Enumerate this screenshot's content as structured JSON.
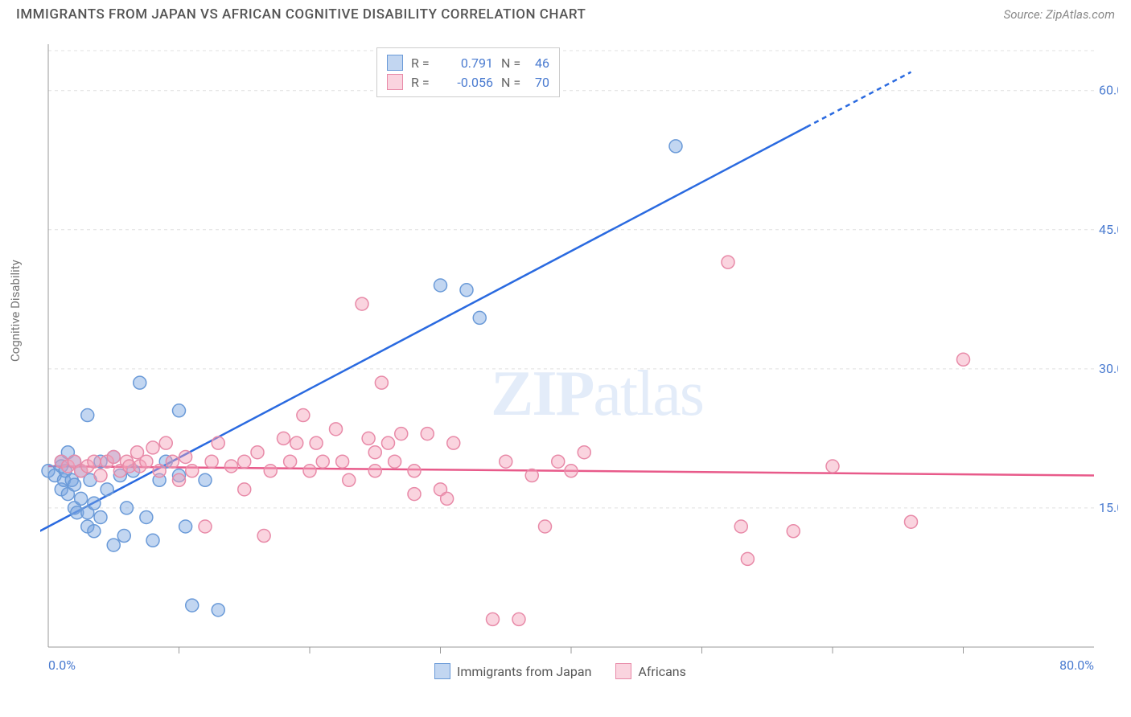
{
  "title": "IMMIGRANTS FROM JAPAN VS AFRICAN COGNITIVE DISABILITY CORRELATION CHART",
  "source_label": "Source: ZipAtlas.com",
  "ylabel": "Cognitive Disability",
  "watermark_a": "ZIP",
  "watermark_b": "atlas",
  "chart": {
    "type": "scatter",
    "xlim": [
      0,
      80
    ],
    "ylim": [
      0,
      65
    ],
    "x_tick_labels": {
      "0": "0.0%",
      "80": "80.0%"
    },
    "y_tick_labels": [
      "15.0%",
      "30.0%",
      "45.0%",
      "60.0%"
    ],
    "y_tick_values": [
      15,
      30,
      45,
      60
    ],
    "x_minor_ticks": [
      10,
      20,
      30,
      40,
      50,
      60,
      70
    ],
    "grid_color": "#e0e0e0",
    "axis_color": "#999",
    "tick_label_color": "#4a7bd0",
    "background_color": "#ffffff",
    "marker_radius": 8,
    "marker_stroke_width": 1.5,
    "line_width": 2.5,
    "series": [
      {
        "name": "Immigrants from Japan",
        "fill_color": "rgba(120,165,225,0.45)",
        "stroke_color": "#6a9ad8",
        "line_color": "#2a6ae0",
        "R": "0.791",
        "N": "46",
        "trend": {
          "x1": -2,
          "y1": 11.5,
          "x2": 66,
          "y2": 62,
          "dash_from_x": 58
        },
        "points": [
          [
            0,
            19
          ],
          [
            0.5,
            18.5
          ],
          [
            1,
            20
          ],
          [
            1,
            17
          ],
          [
            1,
            19.5
          ],
          [
            1.2,
            18
          ],
          [
            1.3,
            19
          ],
          [
            1.5,
            21
          ],
          [
            1.5,
            16.5
          ],
          [
            1.8,
            18
          ],
          [
            2,
            20
          ],
          [
            2,
            15
          ],
          [
            2,
            17.5
          ],
          [
            2.2,
            14.5
          ],
          [
            2.5,
            19
          ],
          [
            2.5,
            16
          ],
          [
            3,
            13
          ],
          [
            3,
            14.5
          ],
          [
            3,
            25
          ],
          [
            3.2,
            18
          ],
          [
            3.5,
            15.5
          ],
          [
            3.5,
            12.5
          ],
          [
            4,
            14
          ],
          [
            4,
            20
          ],
          [
            4.5,
            17
          ],
          [
            5,
            20.5
          ],
          [
            5,
            11
          ],
          [
            5.5,
            18.5
          ],
          [
            5.8,
            12
          ],
          [
            6,
            15
          ],
          [
            6.5,
            19
          ],
          [
            7,
            28.5
          ],
          [
            7.5,
            14
          ],
          [
            8,
            11.5
          ],
          [
            8.5,
            18
          ],
          [
            9,
            20
          ],
          [
            10,
            25.5
          ],
          [
            10,
            18.5
          ],
          [
            10.5,
            13
          ],
          [
            11,
            4.5
          ],
          [
            12,
            18
          ],
          [
            13,
            4
          ],
          [
            30,
            39
          ],
          [
            32,
            38.5
          ],
          [
            33,
            35.5
          ],
          [
            48,
            54
          ]
        ]
      },
      {
        "name": "Africans",
        "fill_color": "rgba(245,160,185,0.45)",
        "stroke_color": "#e88aa8",
        "line_color": "#e85a8a",
        "R": "-0.056",
        "N": "70",
        "trend": {
          "x1": 0,
          "y1": 19.5,
          "x2": 80,
          "y2": 18.5,
          "dash_from_x": 999
        },
        "points": [
          [
            1,
            20
          ],
          [
            1.5,
            19.5
          ],
          [
            2,
            20
          ],
          [
            2.5,
            19
          ],
          [
            3,
            19.5
          ],
          [
            3.5,
            20
          ],
          [
            4,
            18.5
          ],
          [
            4.5,
            20
          ],
          [
            5,
            20.5
          ],
          [
            5.5,
            19
          ],
          [
            6,
            20
          ],
          [
            6.2,
            19.5
          ],
          [
            6.8,
            21
          ],
          [
            7,
            19.5
          ],
          [
            7.5,
            20
          ],
          [
            8,
            21.5
          ],
          [
            8.5,
            19
          ],
          [
            9,
            22
          ],
          [
            9.5,
            20
          ],
          [
            10,
            18
          ],
          [
            10.5,
            20.5
          ],
          [
            11,
            19
          ],
          [
            12,
            13
          ],
          [
            12.5,
            20
          ],
          [
            13,
            22
          ],
          [
            14,
            19.5
          ],
          [
            15,
            20
          ],
          [
            15,
            17
          ],
          [
            16,
            21
          ],
          [
            16.5,
            12
          ],
          [
            17,
            19
          ],
          [
            18,
            22.5
          ],
          [
            18.5,
            20
          ],
          [
            19,
            22
          ],
          [
            19.5,
            25
          ],
          [
            20,
            19
          ],
          [
            20.5,
            22
          ],
          [
            21,
            20
          ],
          [
            22,
            23.5
          ],
          [
            22.5,
            20
          ],
          [
            23,
            18
          ],
          [
            24,
            37
          ],
          [
            24.5,
            22.5
          ],
          [
            25,
            21
          ],
          [
            25,
            19
          ],
          [
            25.5,
            28.5
          ],
          [
            26,
            22
          ],
          [
            26.5,
            20
          ],
          [
            27,
            23
          ],
          [
            28,
            16.5
          ],
          [
            28,
            19
          ],
          [
            29,
            23
          ],
          [
            30,
            17
          ],
          [
            30.5,
            16
          ],
          [
            31,
            22
          ],
          [
            34,
            3
          ],
          [
            35,
            20
          ],
          [
            37,
            18.5
          ],
          [
            38,
            13
          ],
          [
            39,
            20
          ],
          [
            40,
            19
          ],
          [
            41,
            21
          ],
          [
            52,
            41.5
          ],
          [
            53,
            13
          ],
          [
            53.5,
            9.5
          ],
          [
            57,
            12.5
          ],
          [
            60,
            19.5
          ],
          [
            66,
            13.5
          ],
          [
            70,
            31
          ],
          [
            36,
            3
          ]
        ]
      }
    ],
    "legend_labels": [
      "Immigrants from Japan",
      "Africans"
    ]
  }
}
